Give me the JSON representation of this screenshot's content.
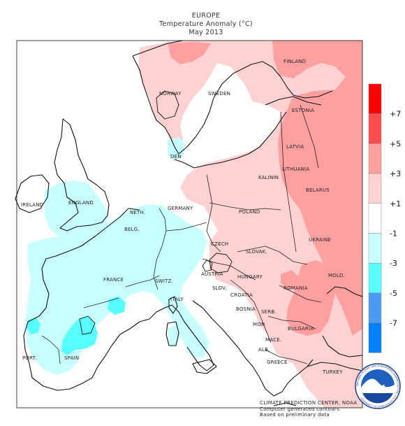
{
  "title": {
    "line1": "EUROPE",
    "line2": "Temperature Anomaly (°C)",
    "line3": "May 2013"
  },
  "countries": {
    "finland": "FINLAND",
    "sweden": "SWEDEN",
    "norway": "NORWAY",
    "estonia": "ESTONIA",
    "latvia": "LATVIA",
    "lithuania": "LITHUANIA",
    "belarus": "BELARUS",
    "kalinin": "KALININ",
    "den": "DEN",
    "ireland": "IRELAND",
    "england": "ENGLAND",
    "neth": "NETH.",
    "germany": "GERMANY",
    "poland": "POLAND",
    "belg": "BELG.",
    "czech": "CZECH",
    "slovak": "SLOVAK.",
    "ukraine": "UKRAINE",
    "austria": "AUSTRIA",
    "hungary": "HUNGARY",
    "france": "FRANCE",
    "switz": "SWITZ.",
    "slov": "SLOV.",
    "croatia": "CROATIA",
    "romania": "ROMANIA",
    "mold": "MOLD.",
    "italy": "ITALY",
    "bosnia": "BOSNIA",
    "serb": "SERB.",
    "mon": "MON",
    "bulgaria": "BULGARIA",
    "mace": "MACE.",
    "alb": "ALB.",
    "greece": "GREECE",
    "turkey": "TURKEY",
    "spain": "SPAIN",
    "port": "PORT."
  },
  "colorbar": {
    "levels": [
      {
        "label": "+7",
        "color": "#ff0000"
      },
      {
        "label": "+5",
        "color": "#ff4d4d"
      },
      {
        "label": "+3",
        "color": "#ffa0a0"
      },
      {
        "label": "+1",
        "color": "#ffd2d2"
      },
      {
        "label": "-1",
        "color": "#ffffff"
      },
      {
        "label": "-3",
        "color": "#c8ffff"
      },
      {
        "label": "-5",
        "color": "#58ffff"
      },
      {
        "label": "-7",
        "color": "#4a9df2"
      },
      {
        "label": "",
        "color": "#0080ff"
      }
    ]
  },
  "credit": {
    "line1": "CLIMATE PREDICTION CENTER, NOAA",
    "line2": "Computer generated contours",
    "line3": "Based on preliminary data"
  },
  "logo": {
    "text": "NOAA",
    "ring_text": "NATIONAL OCEANIC AND ATMOSPHERIC ADMINISTRATION · U.S. DEPARTMENT OF COMMERCE"
  },
  "colors": {
    "warm_light": "#ffd2d2",
    "warm_mid": "#ffa0a0",
    "cool_light": "#c8ffff",
    "cool_mid": "#58ffff"
  }
}
